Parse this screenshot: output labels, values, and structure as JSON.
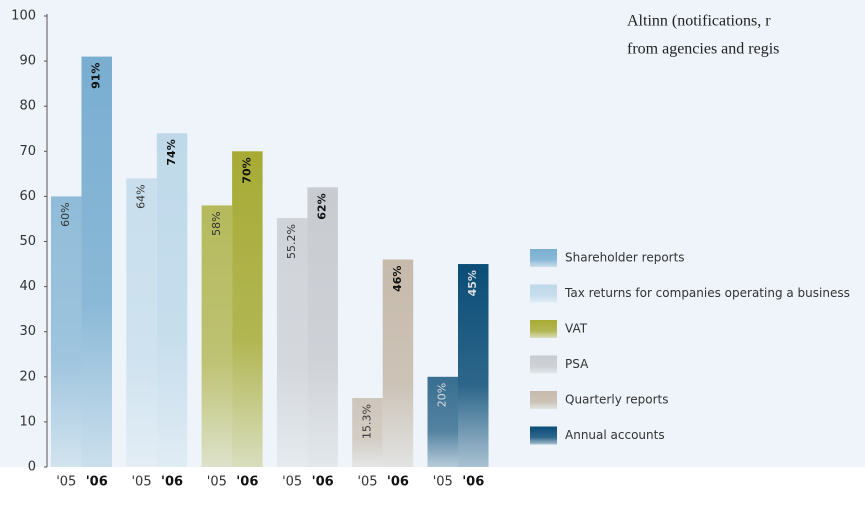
{
  "chart_data": {
    "type": "grouped-bar",
    "annotation": [
      "Altinn (notifications, r",
      "from agencies and regis"
    ],
    "categories": [
      "'05",
      "'06"
    ],
    "ylim": [
      0,
      100
    ],
    "yticks": [
      0,
      10,
      20,
      30,
      40,
      50,
      60,
      70,
      80,
      90,
      100
    ],
    "legend": "right",
    "series": [
      {
        "name": "Shareholder reports",
        "color": "#79aed1",
        "values": [
          60,
          91
        ],
        "value_labels": [
          "60%",
          "91%"
        ]
      },
      {
        "name": "Tax returns for companies operating a business",
        "color": "#bfd9ea",
        "values": [
          64,
          74
        ],
        "value_labels": [
          "64%",
          "74%"
        ]
      },
      {
        "name": "VAT",
        "color": "#a7ab35",
        "values": [
          58,
          70
        ],
        "value_labels": [
          "58%",
          "70%"
        ]
      },
      {
        "name": "PSA",
        "color": "#c8cbd0",
        "values": [
          55.2,
          62
        ],
        "value_labels": [
          "55.2%",
          "62%"
        ]
      },
      {
        "name": "Quarterly reports",
        "color": "#c6baab",
        "values": [
          15.3,
          46
        ],
        "value_labels": [
          "15.3%",
          "46%"
        ]
      },
      {
        "name": "Annual accounts",
        "color": "#0b4d77",
        "values": [
          20,
          45
        ],
        "value_labels": [
          "20%",
          "45%"
        ]
      }
    ]
  }
}
